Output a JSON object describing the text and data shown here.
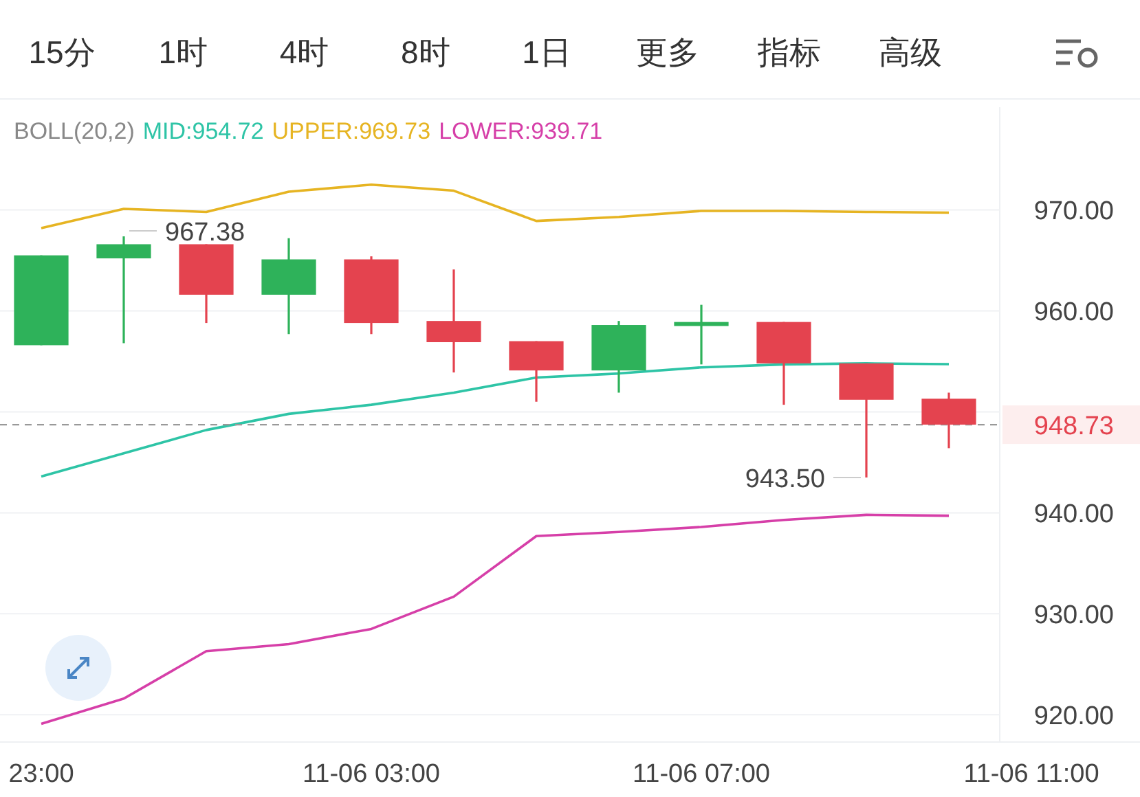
{
  "chart_data": {
    "type": "candlestick",
    "annotations": [
      "15分",
      "1时",
      "4时",
      "8时",
      "1日",
      "更多",
      "指标",
      "高级",
      "967.38",
      "943.50"
    ],
    "legend_title": "BOLL(20,2)",
    "legend": "top",
    "grid": "y",
    "categories": [
      "23:00",
      null,
      null,
      null,
      "11-06 03:00",
      null,
      null,
      null,
      "11-06 07:00",
      null,
      null,
      null,
      "11-06 11:00"
    ],
    "ylim": [
      917.3,
      979.9
    ],
    "yticks": [
      {
        "value": 920,
        "label": "920.00"
      },
      {
        "value": 930,
        "label": "930.00"
      },
      {
        "value": 940,
        "label": "940.00"
      },
      {
        "value": 950,
        "label": null
      },
      {
        "value": 960,
        "label": "960.00"
      },
      {
        "value": 970,
        "label": "970.00"
      }
    ],
    "ohlc": [
      [
        956.6,
        965.5,
        956.6,
        965.5
      ],
      [
        965.2,
        967.38,
        956.8,
        966.6
      ],
      [
        966.6,
        966.6,
        958.8,
        961.6
      ],
      [
        961.6,
        967.2,
        957.7,
        965.1
      ],
      [
        965.1,
        965.4,
        957.7,
        958.8
      ],
      [
        959.0,
        964.1,
        953.9,
        956.9
      ],
      [
        957.0,
        957.0,
        951.0,
        954.1
      ],
      [
        954.1,
        959.0,
        951.9,
        958.6
      ],
      [
        958.5,
        960.6,
        954.7,
        958.9
      ],
      [
        958.9,
        958.9,
        950.7,
        954.8
      ],
      [
        954.8,
        954.8,
        943.5,
        951.2
      ],
      [
        951.3,
        951.9,
        946.4,
        948.73
      ],
      null
    ],
    "colors": [
      "#2eb25a",
      "#2eb25a",
      "#e4434f",
      "#2eb25a",
      "#e4434f",
      "#e4434f",
      "#e4434f",
      "#2eb25a",
      "#2eb25a",
      "#e4434f",
      "#e4434f",
      "#e4434f",
      null
    ],
    "series": [
      {
        "name": "MID:954.72",
        "color": "#2ec4a6",
        "type": "line",
        "values": [
          943.6,
          945.9,
          948.2,
          949.8,
          950.7,
          951.9,
          953.4,
          953.8,
          954.4,
          954.7,
          954.8,
          954.72,
          null
        ]
      },
      {
        "name": "UPPER:969.73",
        "color": "#e6b422",
        "type": "line",
        "values": [
          968.2,
          970.1,
          969.8,
          971.8,
          972.5,
          971.9,
          968.9,
          969.3,
          969.9,
          969.9,
          969.8,
          969.73,
          null
        ]
      },
      {
        "name": "LOWER:939.71",
        "color": "#d63fa8",
        "type": "line",
        "values": [
          919.1,
          921.6,
          926.3,
          927.0,
          928.5,
          931.7,
          937.7,
          938.1,
          938.6,
          939.3,
          939.8,
          939.71,
          null
        ]
      }
    ],
    "ref_lines": [
      {
        "axis": "y",
        "value": 948.73,
        "label": "948.73",
        "color": "#999999",
        "line_style": "dashed"
      }
    ]
  }
}
